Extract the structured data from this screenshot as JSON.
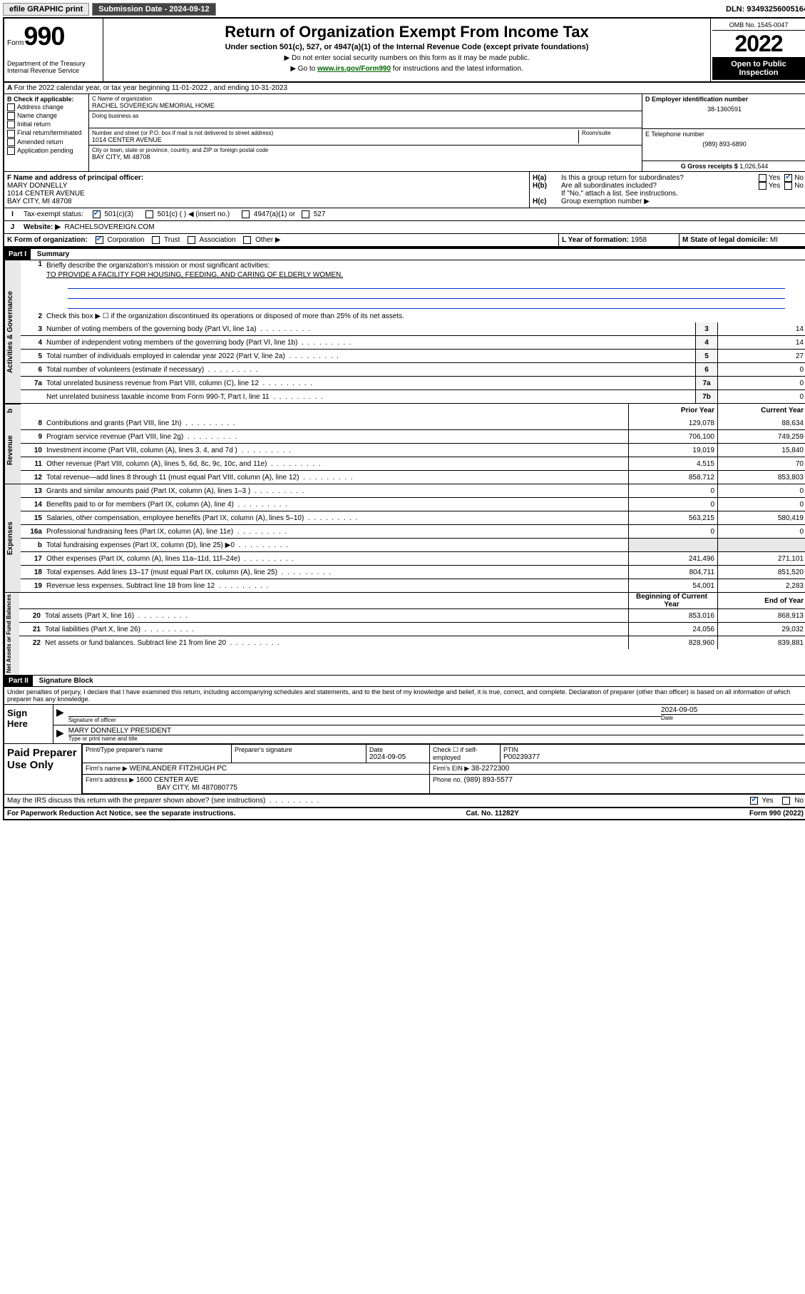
{
  "topbar": {
    "efile": "efile GRAPHIC print",
    "subdate_label": "Submission Date - ",
    "subdate": "2024-09-12",
    "dln_label": "DLN: ",
    "dln": "93493256005164"
  },
  "header": {
    "form_prefix": "Form",
    "form_no": "990",
    "dept": "Department of the Treasury\nInternal Revenue Service",
    "title": "Return of Organization Exempt From Income Tax",
    "sub1": "Under section 501(c), 527, or 4947(a)(1) of the Internal Revenue Code (except private foundations)",
    "sub2": "▶ Do not enter social security numbers on this form as it may be made public.",
    "sub3_pre": "▶ Go to ",
    "sub3_link": "www.irs.gov/Form990",
    "sub3_post": " for instructions and the latest information.",
    "omb": "OMB No. 1545-0047",
    "year": "2022",
    "open": "Open to Public Inspection"
  },
  "rowA": "For the 2022 calendar year, or tax year beginning 11-01-2022   , and ending 10-31-2023",
  "B": {
    "label": "B Check if applicable:",
    "items": [
      "Address change",
      "Name change",
      "Initial return",
      "Final return/terminated",
      "Amended return",
      "Application pending"
    ]
  },
  "C": {
    "name_label": "C Name of organization",
    "name": "RACHEL SOVEREIGN MEMORIAL HOME",
    "dba_label": "Doing business as",
    "addr_label": "Number and street (or P.O. box if mail is not delivered to street address)",
    "room_label": "Room/suite",
    "addr": "1014 CENTER AVENUE",
    "city_label": "City or town, state or province, country, and ZIP or foreign postal code",
    "city": "BAY CITY, MI  48708"
  },
  "D": {
    "label": "D Employer identification number",
    "val": "38-1360591",
    "E_label": "E Telephone number",
    "E_val": "(989) 893-6890",
    "G_label": "G Gross receipts $ ",
    "G_val": "1,026,544"
  },
  "F": {
    "label": "F Name and address of principal officer:",
    "name": "MARY DONNELLY",
    "addr": "1014 CENTER AVENUE",
    "city": "BAY CITY, MI  48708"
  },
  "H": {
    "a": "Is this a group return for subordinates?",
    "b": "Are all subordinates included?",
    "b_note": "If \"No,\" attach a list. See instructions.",
    "c": "Group exemption number ▶",
    "yes": "Yes",
    "no": "No"
  },
  "I": {
    "label": "Tax-exempt status:",
    "o1": "501(c)(3)",
    "o2": "501(c) (  ) ◀ (insert no.)",
    "o3": "4947(a)(1) or",
    "o4": "527"
  },
  "J": {
    "label": "Website: ▶",
    "val": "RACHELSOVEREIGN.COM"
  },
  "K": {
    "label": "K Form of organization:",
    "opts": [
      "Corporation",
      "Trust",
      "Association",
      "Other ▶"
    ]
  },
  "L": {
    "label": "L Year of formation: ",
    "val": "1958"
  },
  "M": {
    "label": "M State of legal domicile: ",
    "val": "MI"
  },
  "partI": {
    "hdr": "Part I",
    "title": "Summary"
  },
  "s1": {
    "label": "Briefly describe the organization's mission or most significant activities:",
    "mission": "TO PROVIDE A FACILITY FOR HOUSING, FEEDING, AND CARING OF ELDERLY WOMEN."
  },
  "s2": "Check this box ▶ ☐  if the organization discontinued its operations or disposed of more than 25% of its net assets.",
  "lines_gov": [
    {
      "n": "3",
      "t": "Number of voting members of the governing body (Part VI, line 1a)",
      "b": "3",
      "v": "14"
    },
    {
      "n": "4",
      "t": "Number of independent voting members of the governing body (Part VI, line 1b)",
      "b": "4",
      "v": "14"
    },
    {
      "n": "5",
      "t": "Total number of individuals employed in calendar year 2022 (Part V, line 2a)",
      "b": "5",
      "v": "27"
    },
    {
      "n": "6",
      "t": "Total number of volunteers (estimate if necessary)",
      "b": "6",
      "v": "0"
    },
    {
      "n": "7a",
      "t": "Total unrelated business revenue from Part VIII, column (C), line 12",
      "b": "7a",
      "v": "0"
    },
    {
      "n": "",
      "t": "Net unrelated business taxable income from Form 990-T, Part I, line 11",
      "b": "7b",
      "v": "0"
    }
  ],
  "col_heads": {
    "prior": "Prior Year",
    "current": "Current Year",
    "begin": "Beginning of Current Year",
    "end": "End of Year"
  },
  "rev": [
    {
      "n": "8",
      "t": "Contributions and grants (Part VIII, line 1h)",
      "p": "129,078",
      "c": "88,634"
    },
    {
      "n": "9",
      "t": "Program service revenue (Part VIII, line 2g)",
      "p": "706,100",
      "c": "749,259"
    },
    {
      "n": "10",
      "t": "Investment income (Part VIII, column (A), lines 3, 4, and 7d )",
      "p": "19,019",
      "c": "15,840"
    },
    {
      "n": "11",
      "t": "Other revenue (Part VIII, column (A), lines 5, 6d, 8c, 9c, 10c, and 11e)",
      "p": "4,515",
      "c": "70"
    },
    {
      "n": "12",
      "t": "Total revenue—add lines 8 through 11 (must equal Part VIII, column (A), line 12)",
      "p": "858,712",
      "c": "853,803"
    }
  ],
  "exp": [
    {
      "n": "13",
      "t": "Grants and similar amounts paid (Part IX, column (A), lines 1–3 )",
      "p": "0",
      "c": "0"
    },
    {
      "n": "14",
      "t": "Benefits paid to or for members (Part IX, column (A), line 4)",
      "p": "0",
      "c": "0"
    },
    {
      "n": "15",
      "t": "Salaries, other compensation, employee benefits (Part IX, column (A), lines 5–10)",
      "p": "563,215",
      "c": "580,419"
    },
    {
      "n": "16a",
      "t": "Professional fundraising fees (Part IX, column (A), line 11e)",
      "p": "0",
      "c": "0"
    },
    {
      "n": "b",
      "t": "Total fundraising expenses (Part IX, column (D), line 25) ▶0",
      "p": "",
      "c": "",
      "shade": true
    },
    {
      "n": "17",
      "t": "Other expenses (Part IX, column (A), lines 11a–11d, 11f–24e)",
      "p": "241,496",
      "c": "271,101"
    },
    {
      "n": "18",
      "t": "Total expenses. Add lines 13–17 (must equal Part IX, column (A), line 25)",
      "p": "804,711",
      "c": "851,520"
    },
    {
      "n": "19",
      "t": "Revenue less expenses. Subtract line 18 from line 12",
      "p": "54,001",
      "c": "2,283"
    }
  ],
  "net": [
    {
      "n": "20",
      "t": "Total assets (Part X, line 16)",
      "p": "853,016",
      "c": "868,913"
    },
    {
      "n": "21",
      "t": "Total liabilities (Part X, line 26)",
      "p": "24,056",
      "c": "29,032"
    },
    {
      "n": "22",
      "t": "Net assets or fund balances. Subtract line 21 from line 20",
      "p": "828,960",
      "c": "839,881"
    }
  ],
  "vlabels": {
    "gov": "Activities & Governance",
    "rev": "Revenue",
    "exp": "Expenses",
    "net": "Net Assets or Fund Balances"
  },
  "partII": {
    "hdr": "Part II",
    "title": "Signature Block"
  },
  "penalty": "Under penalties of perjury, I declare that I have examined this return, including accompanying schedules and statements, and to the best of my knowledge and belief, it is true, correct, and complete. Declaration of preparer (other than officer) is based on all information of which preparer has any knowledge.",
  "sign": {
    "here": "Sign Here",
    "sig_label": "Signature of officer",
    "date_label": "Date",
    "date": "2024-09-05",
    "name": "MARY DONNELLY PRESIDENT",
    "name_label": "Type or print name and title"
  },
  "paid": {
    "title": "Paid Preparer Use Only",
    "h1": "Print/Type preparer's name",
    "h2": "Preparer's signature",
    "h3": "Date",
    "h4": "Check ☐ if self-employed",
    "h5": "PTIN",
    "date": "2024-09-05",
    "ptin": "P00239377",
    "firm_label": "Firm's name    ▶",
    "firm": "WEINLANDER FITZHUGH PC",
    "ein_label": "Firm's EIN ▶",
    "ein": "38-2272300",
    "addr_label": "Firm's address ▶",
    "addr1": "1600 CENTER AVE",
    "addr2": "BAY CITY, MI  487080775",
    "phone_label": "Phone no. ",
    "phone": "(989) 893-5577"
  },
  "may": "May the IRS discuss this return with the preparer shown above? (see instructions)",
  "footer": {
    "l": "For Paperwork Reduction Act Notice, see the separate instructions.",
    "c": "Cat. No. 11282Y",
    "r": "Form 990 (2022)"
  }
}
